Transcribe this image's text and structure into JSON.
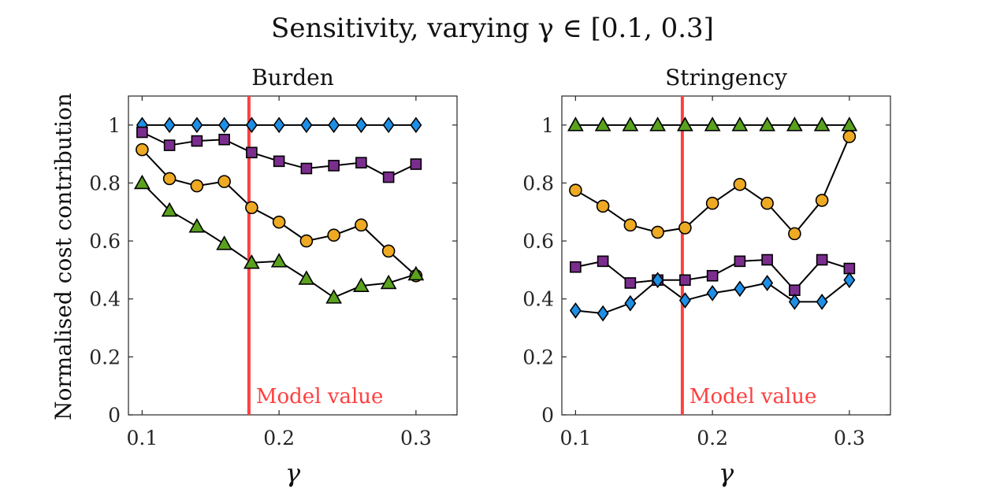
{
  "suptitle": "Sensitivity, varying γ ∈ [0.1, 0.3]",
  "ylabel": "Normalised cost contribution",
  "chart_data": [
    {
      "type": "line",
      "title": "Burden",
      "xlabel": "γ",
      "ylabel": "Normalised cost contribution",
      "xlim": [
        0.09,
        0.33
      ],
      "ylim": [
        0,
        1.1
      ],
      "xticks": [
        0.1,
        0.2,
        0.3
      ],
      "xtick_labels": [
        "0.1",
        "0.2",
        "0.3"
      ],
      "yticks": [
        0,
        0.2,
        0.4,
        0.6,
        0.8,
        1
      ],
      "ytick_labels": [
        "0",
        "0.2",
        "0.4",
        "0.6",
        "0.8",
        "1"
      ],
      "x": [
        0.1,
        0.12,
        0.14,
        0.16,
        0.18,
        0.2,
        0.22,
        0.24,
        0.26,
        0.28,
        0.3
      ],
      "reference_line": {
        "x": 0.178,
        "label": "Model value",
        "color": "#ff4040"
      },
      "series": [
        {
          "marker": "diamond",
          "color": "#1e8fe6",
          "values": [
            1,
            1,
            1,
            1,
            1,
            1,
            1,
            1,
            1,
            1,
            1
          ]
        },
        {
          "marker": "square",
          "color": "#7b2d8e",
          "values": [
            0.975,
            0.93,
            0.945,
            0.95,
            0.905,
            0.875,
            0.85,
            0.86,
            0.87,
            0.82,
            0.865
          ]
        },
        {
          "marker": "circle",
          "color": "#eeaa22",
          "values": [
            0.915,
            0.815,
            0.79,
            0.805,
            0.715,
            0.665,
            0.6,
            0.62,
            0.655,
            0.565,
            0.48
          ]
        },
        {
          "marker": "triangle",
          "color": "#5aa21e",
          "values": [
            0.8,
            0.705,
            0.65,
            0.59,
            0.525,
            0.53,
            0.47,
            0.405,
            0.445,
            0.455,
            0.485
          ]
        }
      ]
    },
    {
      "type": "line",
      "title": "Stringency",
      "xlabel": "γ",
      "ylabel": "",
      "xlim": [
        0.09,
        0.33
      ],
      "ylim": [
        0,
        1.1
      ],
      "xticks": [
        0.1,
        0.2,
        0.3
      ],
      "xtick_labels": [
        "0.1",
        "0.2",
        "0.3"
      ],
      "yticks": [
        0,
        0.2,
        0.4,
        0.6,
        0.8,
        1
      ],
      "ytick_labels": [
        "0",
        "0.2",
        "0.4",
        "0.6",
        "0.8",
        "1"
      ],
      "x": [
        0.1,
        0.12,
        0.14,
        0.16,
        0.18,
        0.2,
        0.22,
        0.24,
        0.26,
        0.28,
        0.3
      ],
      "reference_line": {
        "x": 0.178,
        "label": "Model value",
        "color": "#ff4040"
      },
      "series": [
        {
          "marker": "triangle",
          "color": "#5aa21e",
          "values": [
            1,
            1,
            1,
            1,
            1,
            1,
            1,
            1,
            1,
            1,
            1
          ]
        },
        {
          "marker": "circle",
          "color": "#eeaa22",
          "values": [
            0.775,
            0.72,
            0.655,
            0.63,
            0.645,
            0.73,
            0.795,
            0.73,
            0.625,
            0.74,
            0.96
          ]
        },
        {
          "marker": "square",
          "color": "#7b2d8e",
          "values": [
            0.51,
            0.53,
            0.455,
            0.465,
            0.465,
            0.48,
            0.53,
            0.535,
            0.43,
            0.535,
            0.505
          ]
        },
        {
          "marker": "diamond",
          "color": "#1e8fe6",
          "values": [
            0.36,
            0.35,
            0.385,
            0.465,
            0.395,
            0.42,
            0.435,
            0.455,
            0.39,
            0.39,
            0.465
          ]
        }
      ]
    }
  ]
}
